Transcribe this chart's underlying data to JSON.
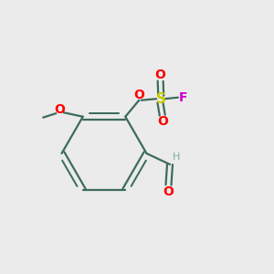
{
  "background_color": "#ebebeb",
  "bond_color": "#3d6b5e",
  "atom_colors": {
    "O": "#ff0000",
    "S": "#cccc00",
    "F": "#cc00cc",
    "H": "#7aadaa"
  },
  "figsize": [
    3.0,
    3.0
  ],
  "dpi": 100
}
